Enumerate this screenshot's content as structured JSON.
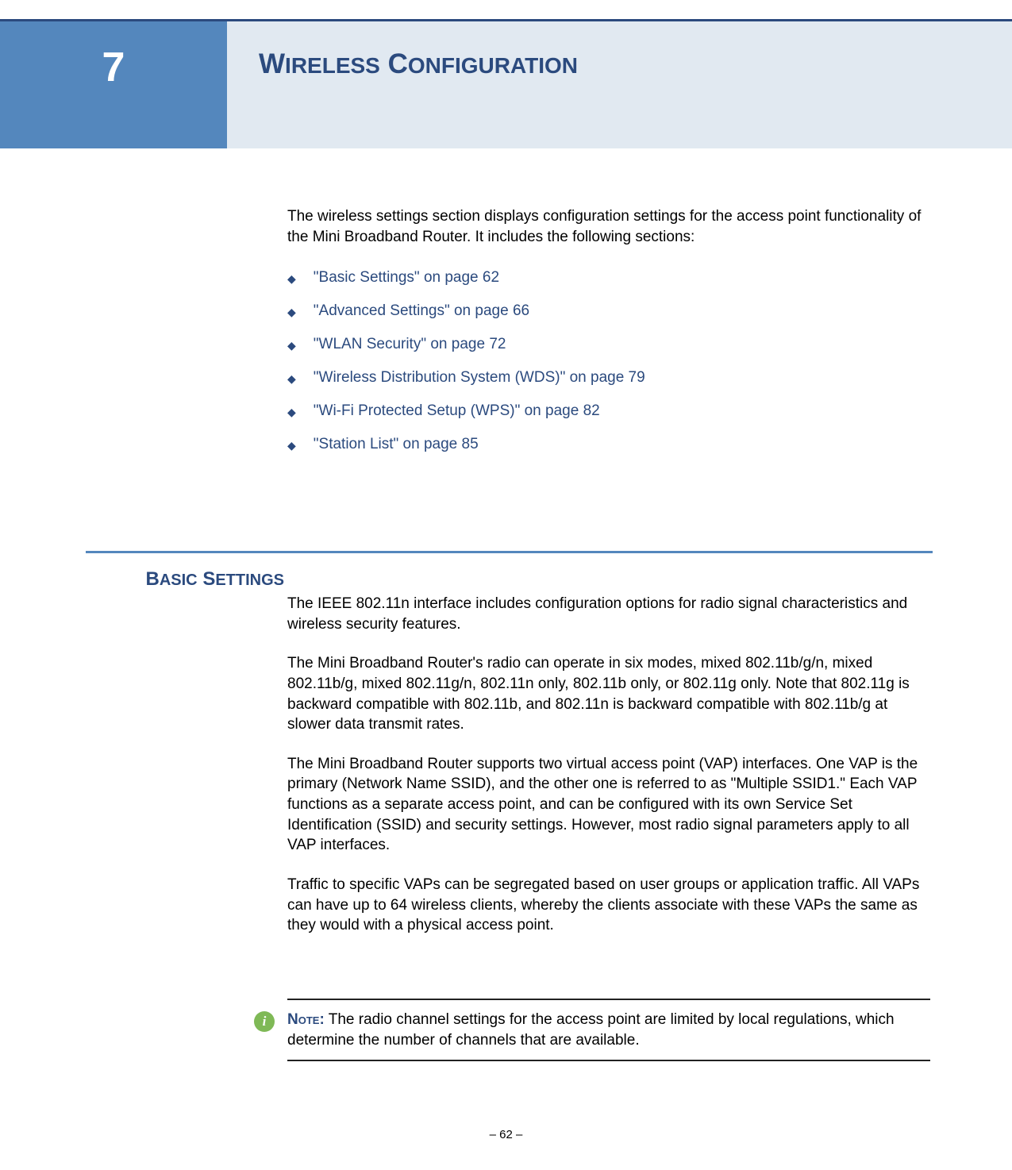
{
  "colors": {
    "brand_dark": "#2b4a7e",
    "brand_mid": "#5487bd",
    "brand_light": "#e1e9f1",
    "note_icon_bg": "#7fb956",
    "text": "#000000",
    "background": "#ffffff"
  },
  "chapter": {
    "number": "7",
    "title_first_cap": "W",
    "title_first_rest": "IRELESS",
    "title_second_cap": "C",
    "title_second_rest": "ONFIGURATION"
  },
  "intro": "The wireless settings section displays configuration settings for the access point functionality of the Mini Broadband Router. It includes the following sections:",
  "links": [
    "\"Basic Settings\" on page 62",
    "\"Advanced Settings\" on page 66",
    "\"WLAN Security\" on page 72",
    "\"Wireless Distribution System (WDS)\" on page 79",
    "\"Wi-Fi Protected Setup (WPS)\" on page 82",
    "\"Station List\" on page 85"
  ],
  "section": {
    "heading_first_cap": "B",
    "heading_first_rest": "ASIC",
    "heading_second_cap": "S",
    "heading_second_rest": "ETTINGS",
    "paras": [
      "The IEEE 802.11n interface includes configuration options for radio signal characteristics and wireless security features.",
      "The Mini Broadband Router's radio can operate in six modes, mixed 802.11b/g/n, mixed 802.11b/g, mixed 802.11g/n, 802.11n only, 802.11b only, or 802.11g only. Note that 802.11g is backward compatible with 802.11b, and 802.11n is backward compatible with 802.11b/g at slower data transmit rates.",
      "The Mini Broadband Router supports two virtual access point (VAP) interfaces. One VAP is the primary (Network Name SSID), and the other one is referred to as \"Multiple SSID1.\" Each VAP functions as a separate access point, and can be configured with its own Service Set Identification (SSID) and security settings. However, most radio signal parameters apply to all VAP interfaces.",
      "Traffic to specific VAPs can be segregated based on user groups or application traffic. All VAPs can have up to 64 wireless clients, whereby the clients associate with these VAPs the same as they would with a physical access point."
    ]
  },
  "note": {
    "label": "Note:",
    "text": " The radio channel settings for the access point are limited by local regulations, which determine the number of channels that are available."
  },
  "footer": "–  62  –"
}
